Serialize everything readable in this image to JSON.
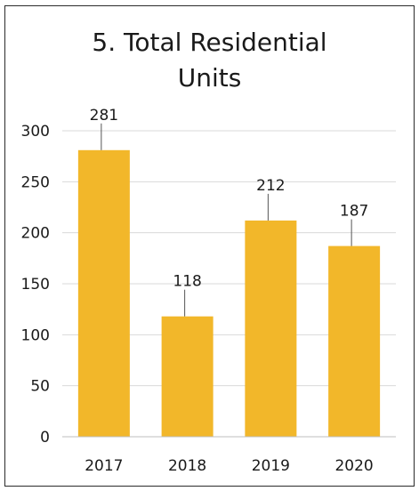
{
  "chart_data": {
    "type": "bar",
    "title_lines": [
      "5. Total Residential",
      "Units"
    ],
    "categories": [
      "2017",
      "2018",
      "2019",
      "2020"
    ],
    "values": [
      281,
      118,
      212,
      187
    ],
    "data_labels": [
      "281",
      "118",
      "212",
      "187"
    ],
    "ylim": [
      0,
      300
    ],
    "yticks": [
      0,
      50,
      100,
      150,
      200,
      250,
      300
    ],
    "grid": true,
    "bar_color": "#f2b72a"
  }
}
